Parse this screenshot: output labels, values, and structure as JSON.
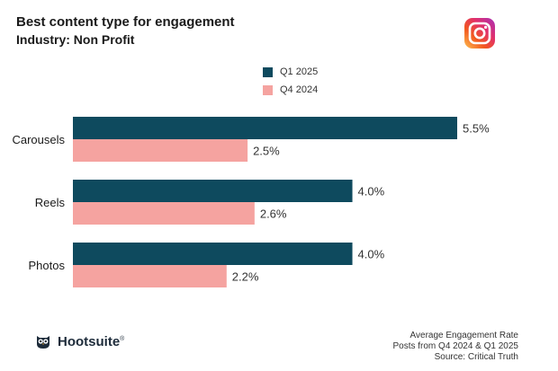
{
  "header": {
    "title": "Best content type for engagement",
    "subtitle": "Industry: Non Profit",
    "platform_icon": "instagram-icon"
  },
  "legend": {
    "items": [
      {
        "label": "Q1 2025",
        "color": "#0e4a5e"
      },
      {
        "label": "Q4 2024",
        "color": "#f5a3a0"
      }
    ]
  },
  "chart_data": {
    "type": "bar",
    "orientation": "horizontal",
    "title": "Best content type for engagement",
    "subtitle": "Industry: Non Profit",
    "categories": [
      "Carousels",
      "Reels",
      "Photos"
    ],
    "series": [
      {
        "name": "Q1 2025",
        "color": "#0e4a5e",
        "values": [
          5.5,
          4.0,
          4.0
        ],
        "labels": [
          "5.5%",
          "4.0%",
          "4.0%"
        ]
      },
      {
        "name": "Q4 2024",
        "color": "#f5a3a0",
        "values": [
          2.5,
          2.6,
          2.2
        ],
        "labels": [
          "2.5%",
          "2.6%",
          "2.2%"
        ]
      }
    ],
    "xlim": [
      0,
      5.5
    ],
    "xlabel": "",
    "ylabel": "",
    "grid": false,
    "legend_position": "top-center"
  },
  "footer": {
    "brand": "Hootsuite",
    "brand_mark": "®",
    "notes": [
      "Average Engagement Rate",
      "Posts from Q4 2024 & Q1 2025",
      "Source: Critical Truth"
    ]
  }
}
